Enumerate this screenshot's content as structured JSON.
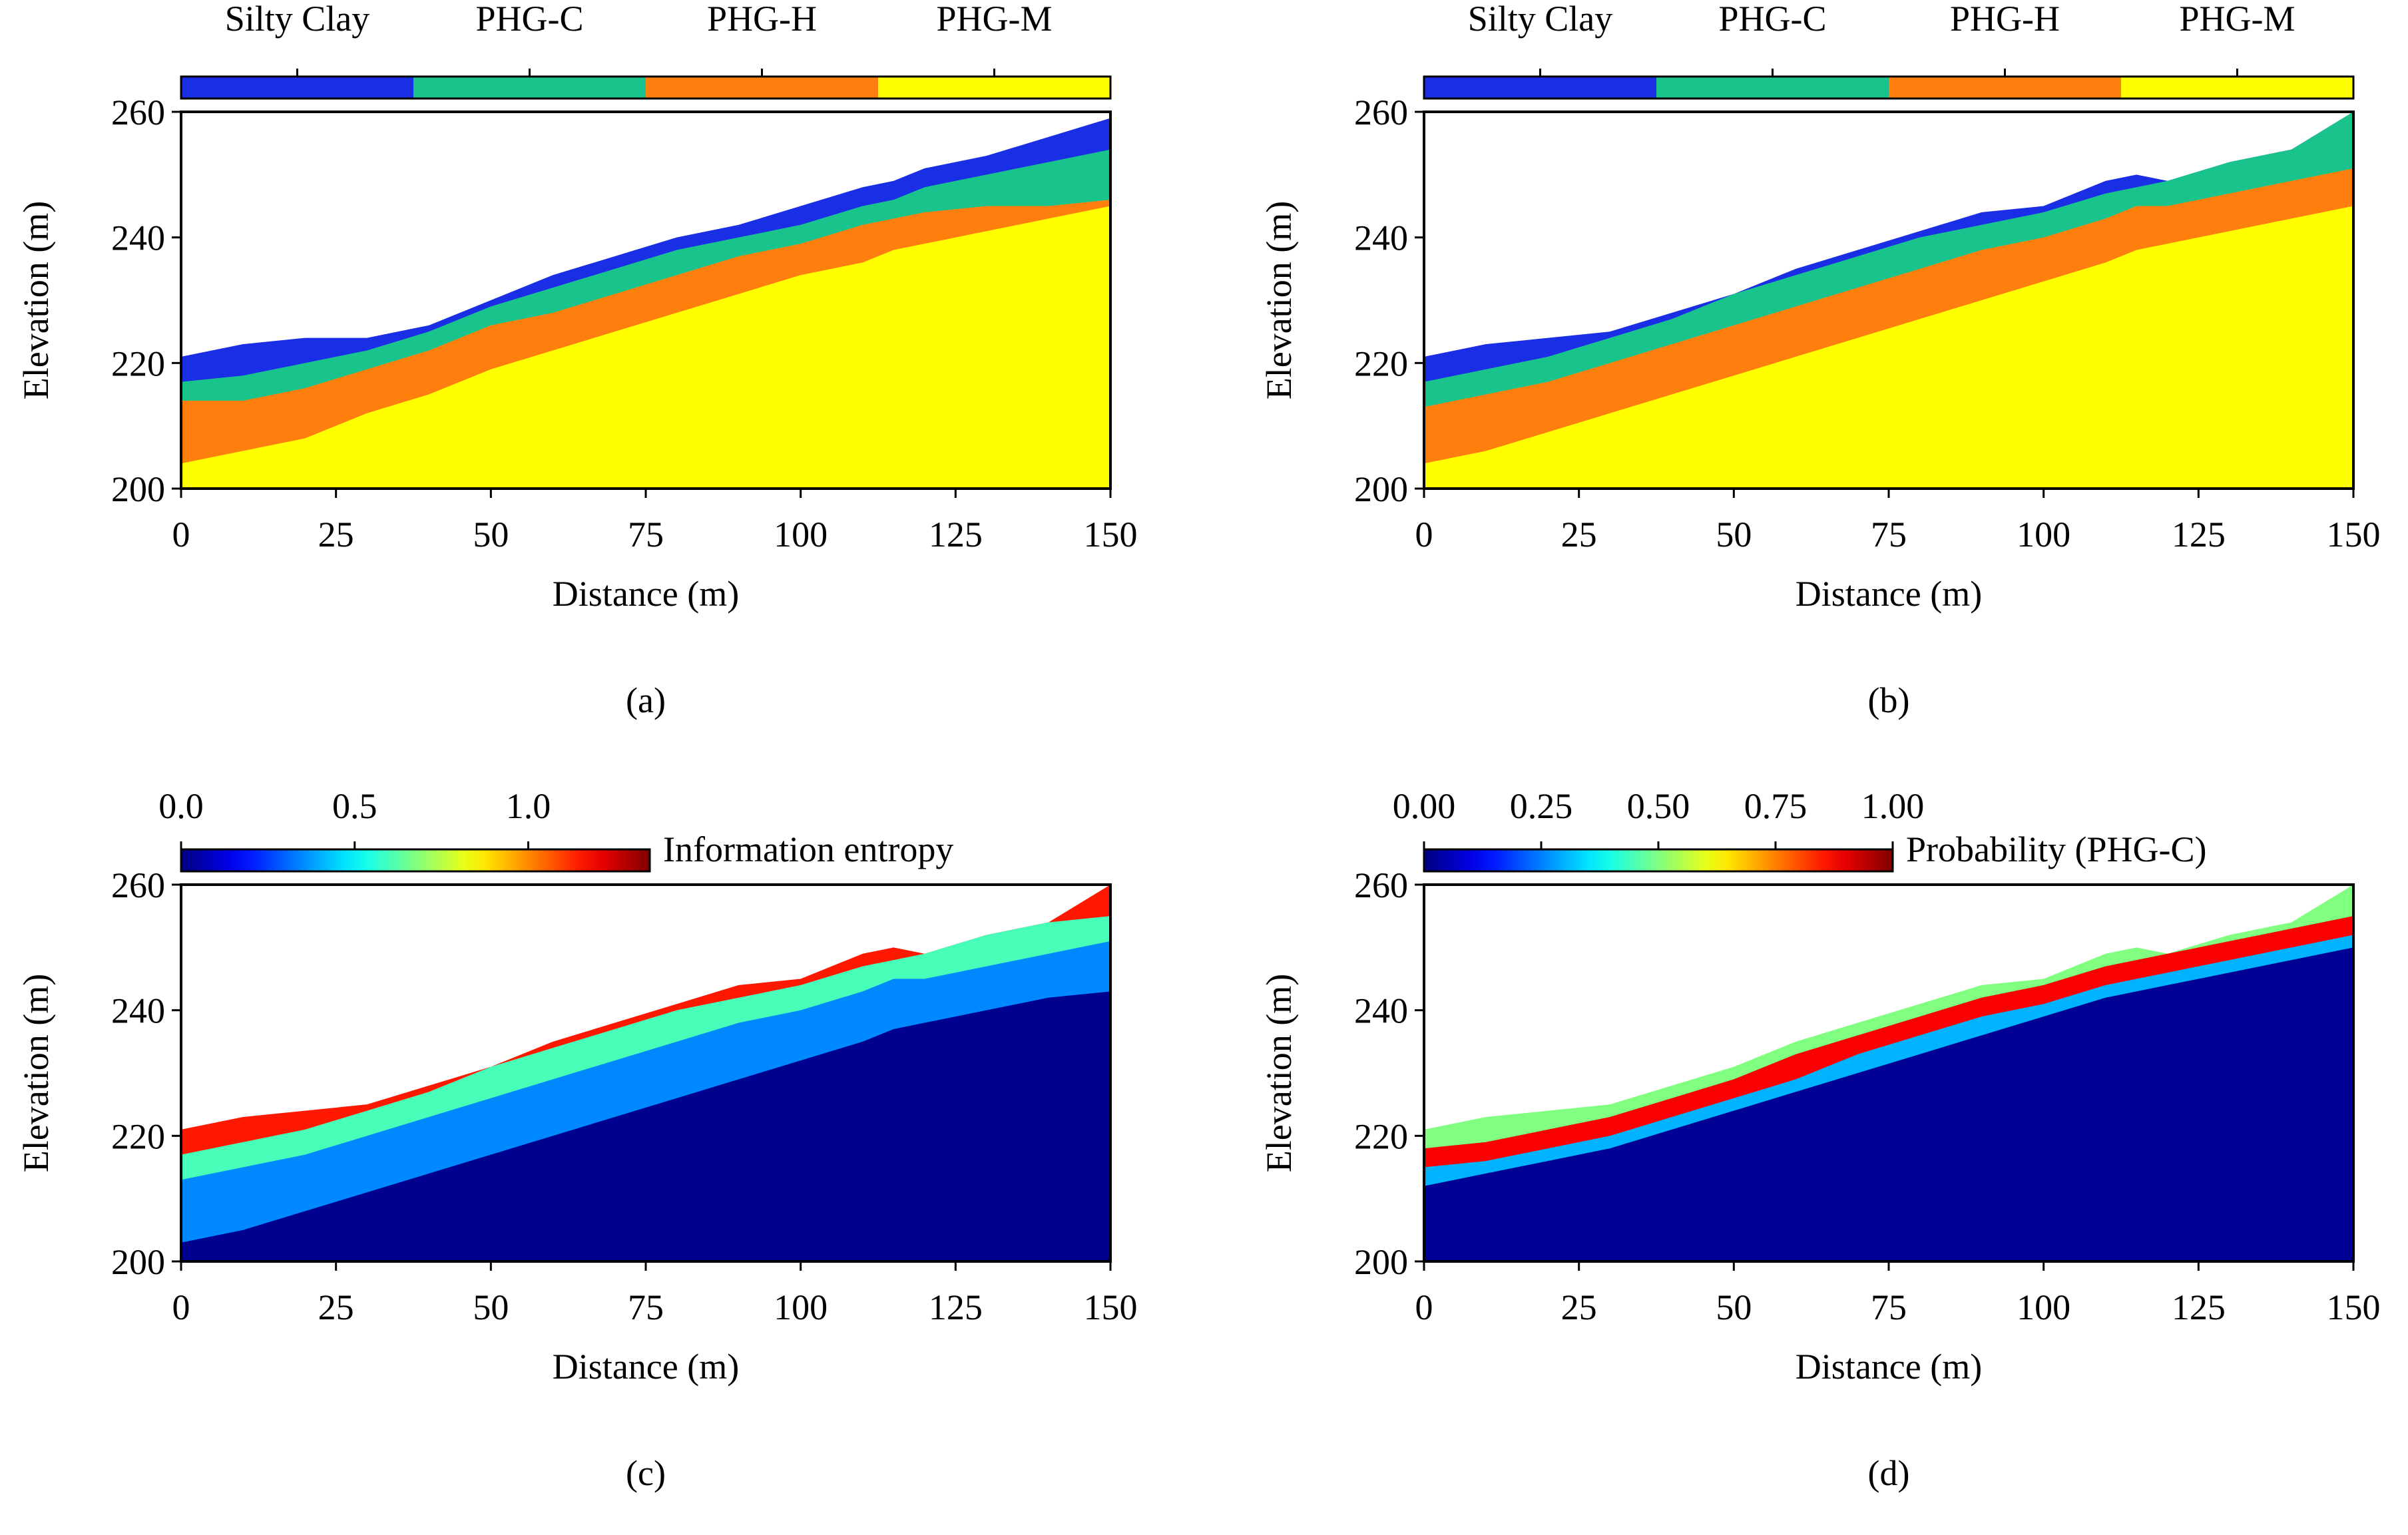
{
  "chart_data": [
    {
      "type": "layers",
      "panel_label": "(a)",
      "xlabel": "Distance (m)",
      "ylabel": "Elevation (m)",
      "xlim": [
        0,
        150
      ],
      "ylim": [
        200,
        260
      ],
      "xticks": [
        0,
        25,
        50,
        75,
        100,
        125,
        150
      ],
      "yticks": [
        200,
        220,
        240,
        260
      ],
      "x": [
        0,
        10,
        20,
        30,
        40,
        50,
        60,
        70,
        80,
        90,
        100,
        110,
        115,
        120,
        130,
        140,
        150
      ],
      "series": [
        {
          "name": "Silty Clay",
          "color": "#1a2ee6",
          "values": [
            221,
            223,
            224,
            224,
            226,
            230,
            234,
            237,
            240,
            242,
            245,
            248,
            249,
            251,
            253,
            256,
            259
          ]
        },
        {
          "name": "PHG-C",
          "color": "#19c48c",
          "values": [
            217,
            218,
            220,
            222,
            225,
            229,
            232,
            235,
            238,
            240,
            242,
            245,
            246,
            248,
            250,
            252,
            254
          ]
        },
        {
          "name": "PHG-H",
          "color": "#ff7f0e",
          "values": [
            214,
            214,
            216,
            219,
            222,
            226,
            228,
            231,
            234,
            237,
            239,
            242,
            243,
            244,
            245,
            245,
            246
          ]
        },
        {
          "name": "PHG-M",
          "color": "#ffff00",
          "values": [
            204,
            206,
            208,
            212,
            215,
            219,
            222,
            225,
            228,
            231,
            234,
            236,
            238,
            239,
            241,
            243,
            245
          ]
        }
      ]
    },
    {
      "type": "layers",
      "panel_label": "(b)",
      "xlabel": "Distance (m)",
      "ylabel": "Elevation (m)",
      "xlim": [
        0,
        150
      ],
      "ylim": [
        200,
        260
      ],
      "xticks": [
        0,
        25,
        50,
        75,
        100,
        125,
        150
      ],
      "yticks": [
        200,
        220,
        240,
        260
      ],
      "x": [
        0,
        10,
        20,
        30,
        40,
        50,
        60,
        70,
        80,
        90,
        100,
        110,
        115,
        120,
        130,
        140,
        150
      ],
      "series": [
        {
          "name": "Silty Clay",
          "color": "#1a2ee6",
          "values": [
            221,
            223,
            224,
            225,
            228,
            231,
            235,
            238,
            241,
            244,
            245,
            249,
            250,
            249,
            252,
            254,
            260
          ]
        },
        {
          "name": "PHG-C",
          "color": "#19c48c",
          "values": [
            217,
            219,
            221,
            224,
            227,
            231,
            234,
            237,
            240,
            242,
            244,
            247,
            248,
            249,
            252,
            254,
            260
          ]
        },
        {
          "name": "PHG-H",
          "color": "#ff7f0e",
          "values": [
            213,
            215,
            217,
            220,
            223,
            226,
            229,
            232,
            235,
            238,
            240,
            243,
            245,
            245,
            247,
            249,
            251
          ]
        },
        {
          "name": "PHG-M",
          "color": "#ffff00",
          "values": [
            204,
            206,
            209,
            212,
            215,
            218,
            221,
            224,
            227,
            230,
            233,
            236,
            238,
            239,
            241,
            243,
            245
          ]
        }
      ]
    },
    {
      "type": "field",
      "panel_label": "(c)",
      "xlabel": "Distance (m)",
      "ylabel": "Elevation (m)",
      "xlim": [
        0,
        150
      ],
      "ylim": [
        200,
        260
      ],
      "xticks": [
        0,
        25,
        50,
        75,
        100,
        125,
        150
      ],
      "yticks": [
        200,
        220,
        240,
        260
      ],
      "colorbar_label": "Information entropy",
      "clim": [
        0,
        1.35
      ],
      "cticks": [
        {
          "value": 0,
          "label": "0.0"
        },
        {
          "value": 0.5,
          "label": "0.5"
        },
        {
          "value": 1,
          "label": "1.0"
        }
      ],
      "x": [
        0,
        10,
        20,
        30,
        40,
        50,
        60,
        70,
        80,
        90,
        100,
        110,
        115,
        120,
        130,
        140,
        150
      ],
      "series": [
        {
          "level": 1.15,
          "values": [
            221,
            223,
            224,
            225,
            228,
            231,
            235,
            238,
            241,
            244,
            245,
            249,
            250,
            249,
            252,
            254,
            260
          ]
        },
        {
          "level": 0.6,
          "values": [
            217,
            219,
            221,
            224,
            227,
            231,
            234,
            237,
            240,
            242,
            244,
            247,
            248,
            249,
            252,
            254,
            255
          ]
        },
        {
          "level": 0.35,
          "values": [
            213,
            215,
            217,
            220,
            223,
            226,
            229,
            232,
            235,
            238,
            240,
            243,
            245,
            245,
            247,
            249,
            251
          ]
        },
        {
          "level": 0.02,
          "values": [
            203,
            205,
            208,
            211,
            214,
            217,
            220,
            223,
            226,
            229,
            232,
            235,
            237,
            238,
            240,
            242,
            243
          ]
        }
      ]
    },
    {
      "type": "field",
      "panel_label": "(d)",
      "xlabel": "Distance (m)",
      "ylabel": "Elevation (m)",
      "xlim": [
        0,
        150
      ],
      "ylim": [
        200,
        260
      ],
      "xticks": [
        0,
        25,
        50,
        75,
        100,
        125,
        150
      ],
      "yticks": [
        200,
        220,
        240,
        260
      ],
      "colorbar_label": "Probability (PHG-C)",
      "clim": [
        0,
        1
      ],
      "cticks": [
        {
          "value": 0,
          "label": "0.00"
        },
        {
          "value": 0.25,
          "label": "0.25"
        },
        {
          "value": 0.5,
          "label": "0.50"
        },
        {
          "value": 0.75,
          "label": "0.75"
        },
        {
          "value": 1,
          "label": "1.00"
        }
      ],
      "x": [
        0,
        10,
        20,
        30,
        40,
        50,
        60,
        70,
        80,
        90,
        100,
        110,
        115,
        120,
        130,
        140,
        150
      ],
      "series": [
        {
          "level": 0.5,
          "values": [
            221,
            223,
            224,
            225,
            228,
            231,
            235,
            238,
            241,
            244,
            245,
            249,
            250,
            249,
            252,
            254,
            260
          ]
        },
        {
          "level": 0.88,
          "values": [
            218,
            219,
            221,
            223,
            226,
            229,
            233,
            236,
            239,
            242,
            244,
            247,
            248,
            249,
            251,
            253,
            255
          ]
        },
        {
          "level": 0.3,
          "values": [
            215,
            216,
            218,
            220,
            223,
            226,
            229,
            233,
            236,
            239,
            241,
            244,
            245,
            246,
            248,
            250,
            252
          ]
        },
        {
          "level": 0.02,
          "values": [
            212,
            214,
            216,
            218,
            221,
            224,
            227,
            230,
            233,
            236,
            239,
            242,
            243,
            244,
            246,
            248,
            250
          ]
        }
      ]
    }
  ]
}
